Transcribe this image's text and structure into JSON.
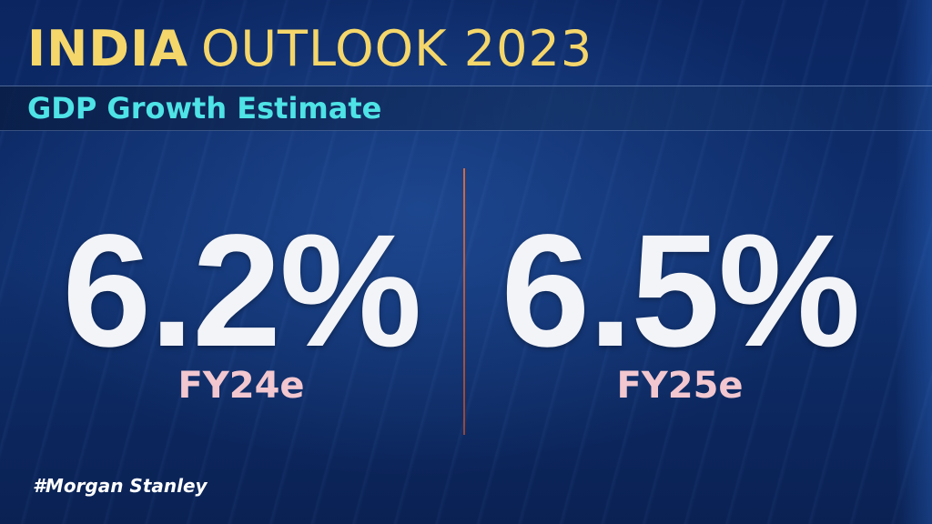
{
  "header": {
    "title_bold": "INDIA",
    "title_light": "OUTLOOK 2023",
    "subtitle": "GDP Growth Estimate"
  },
  "stats": [
    {
      "value": "6.2%",
      "label": "FY24e"
    },
    {
      "value": "6.5%",
      "label": "FY25e"
    }
  ],
  "footer": {
    "hashtag": "#Morgan Stanley"
  },
  "colors": {
    "title": "#f4d66a",
    "subtitle": "#4ee3e6",
    "value": "#f2f4f8",
    "label": "#f3c7cf",
    "divider": "#e06a3a",
    "background": "#0d2a63"
  }
}
